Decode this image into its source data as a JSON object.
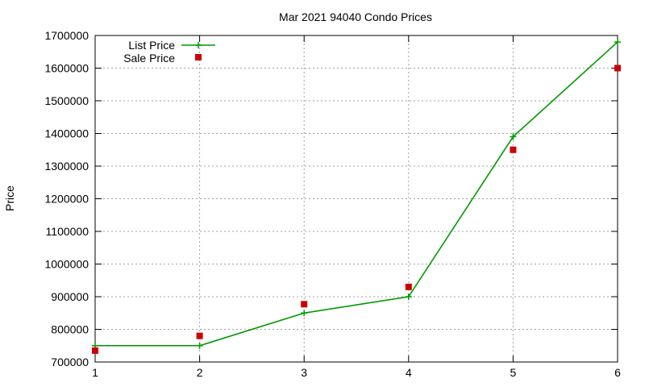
{
  "chart_data": {
    "type": "line",
    "title": "Mar 2021 94040 Condo Prices",
    "xlabel": "",
    "ylabel": "Price",
    "xlim": [
      1,
      6
    ],
    "ylim": [
      700000,
      1700000
    ],
    "x_ticks": [
      "1",
      "2",
      "3",
      "4",
      "5",
      "6"
    ],
    "y_ticks": [
      "700000",
      "800000",
      "900000",
      "1000000",
      "1100000",
      "1200000",
      "1300000",
      "1400000",
      "1500000",
      "1600000",
      "1700000"
    ],
    "grid": true,
    "legend_position": "top-left",
    "x": [
      1,
      2,
      3,
      4,
      5,
      6
    ],
    "series": [
      {
        "name": "List Price",
        "style": "line-with-plus-markers",
        "color": "#009900",
        "values": [
          750000,
          750000,
          850000,
          900000,
          1390000,
          1680000
        ]
      },
      {
        "name": "Sale Price",
        "style": "square-markers",
        "color": "#cc0000",
        "values": [
          735000,
          780000,
          877000,
          930000,
          1350000,
          1600000
        ]
      }
    ]
  }
}
